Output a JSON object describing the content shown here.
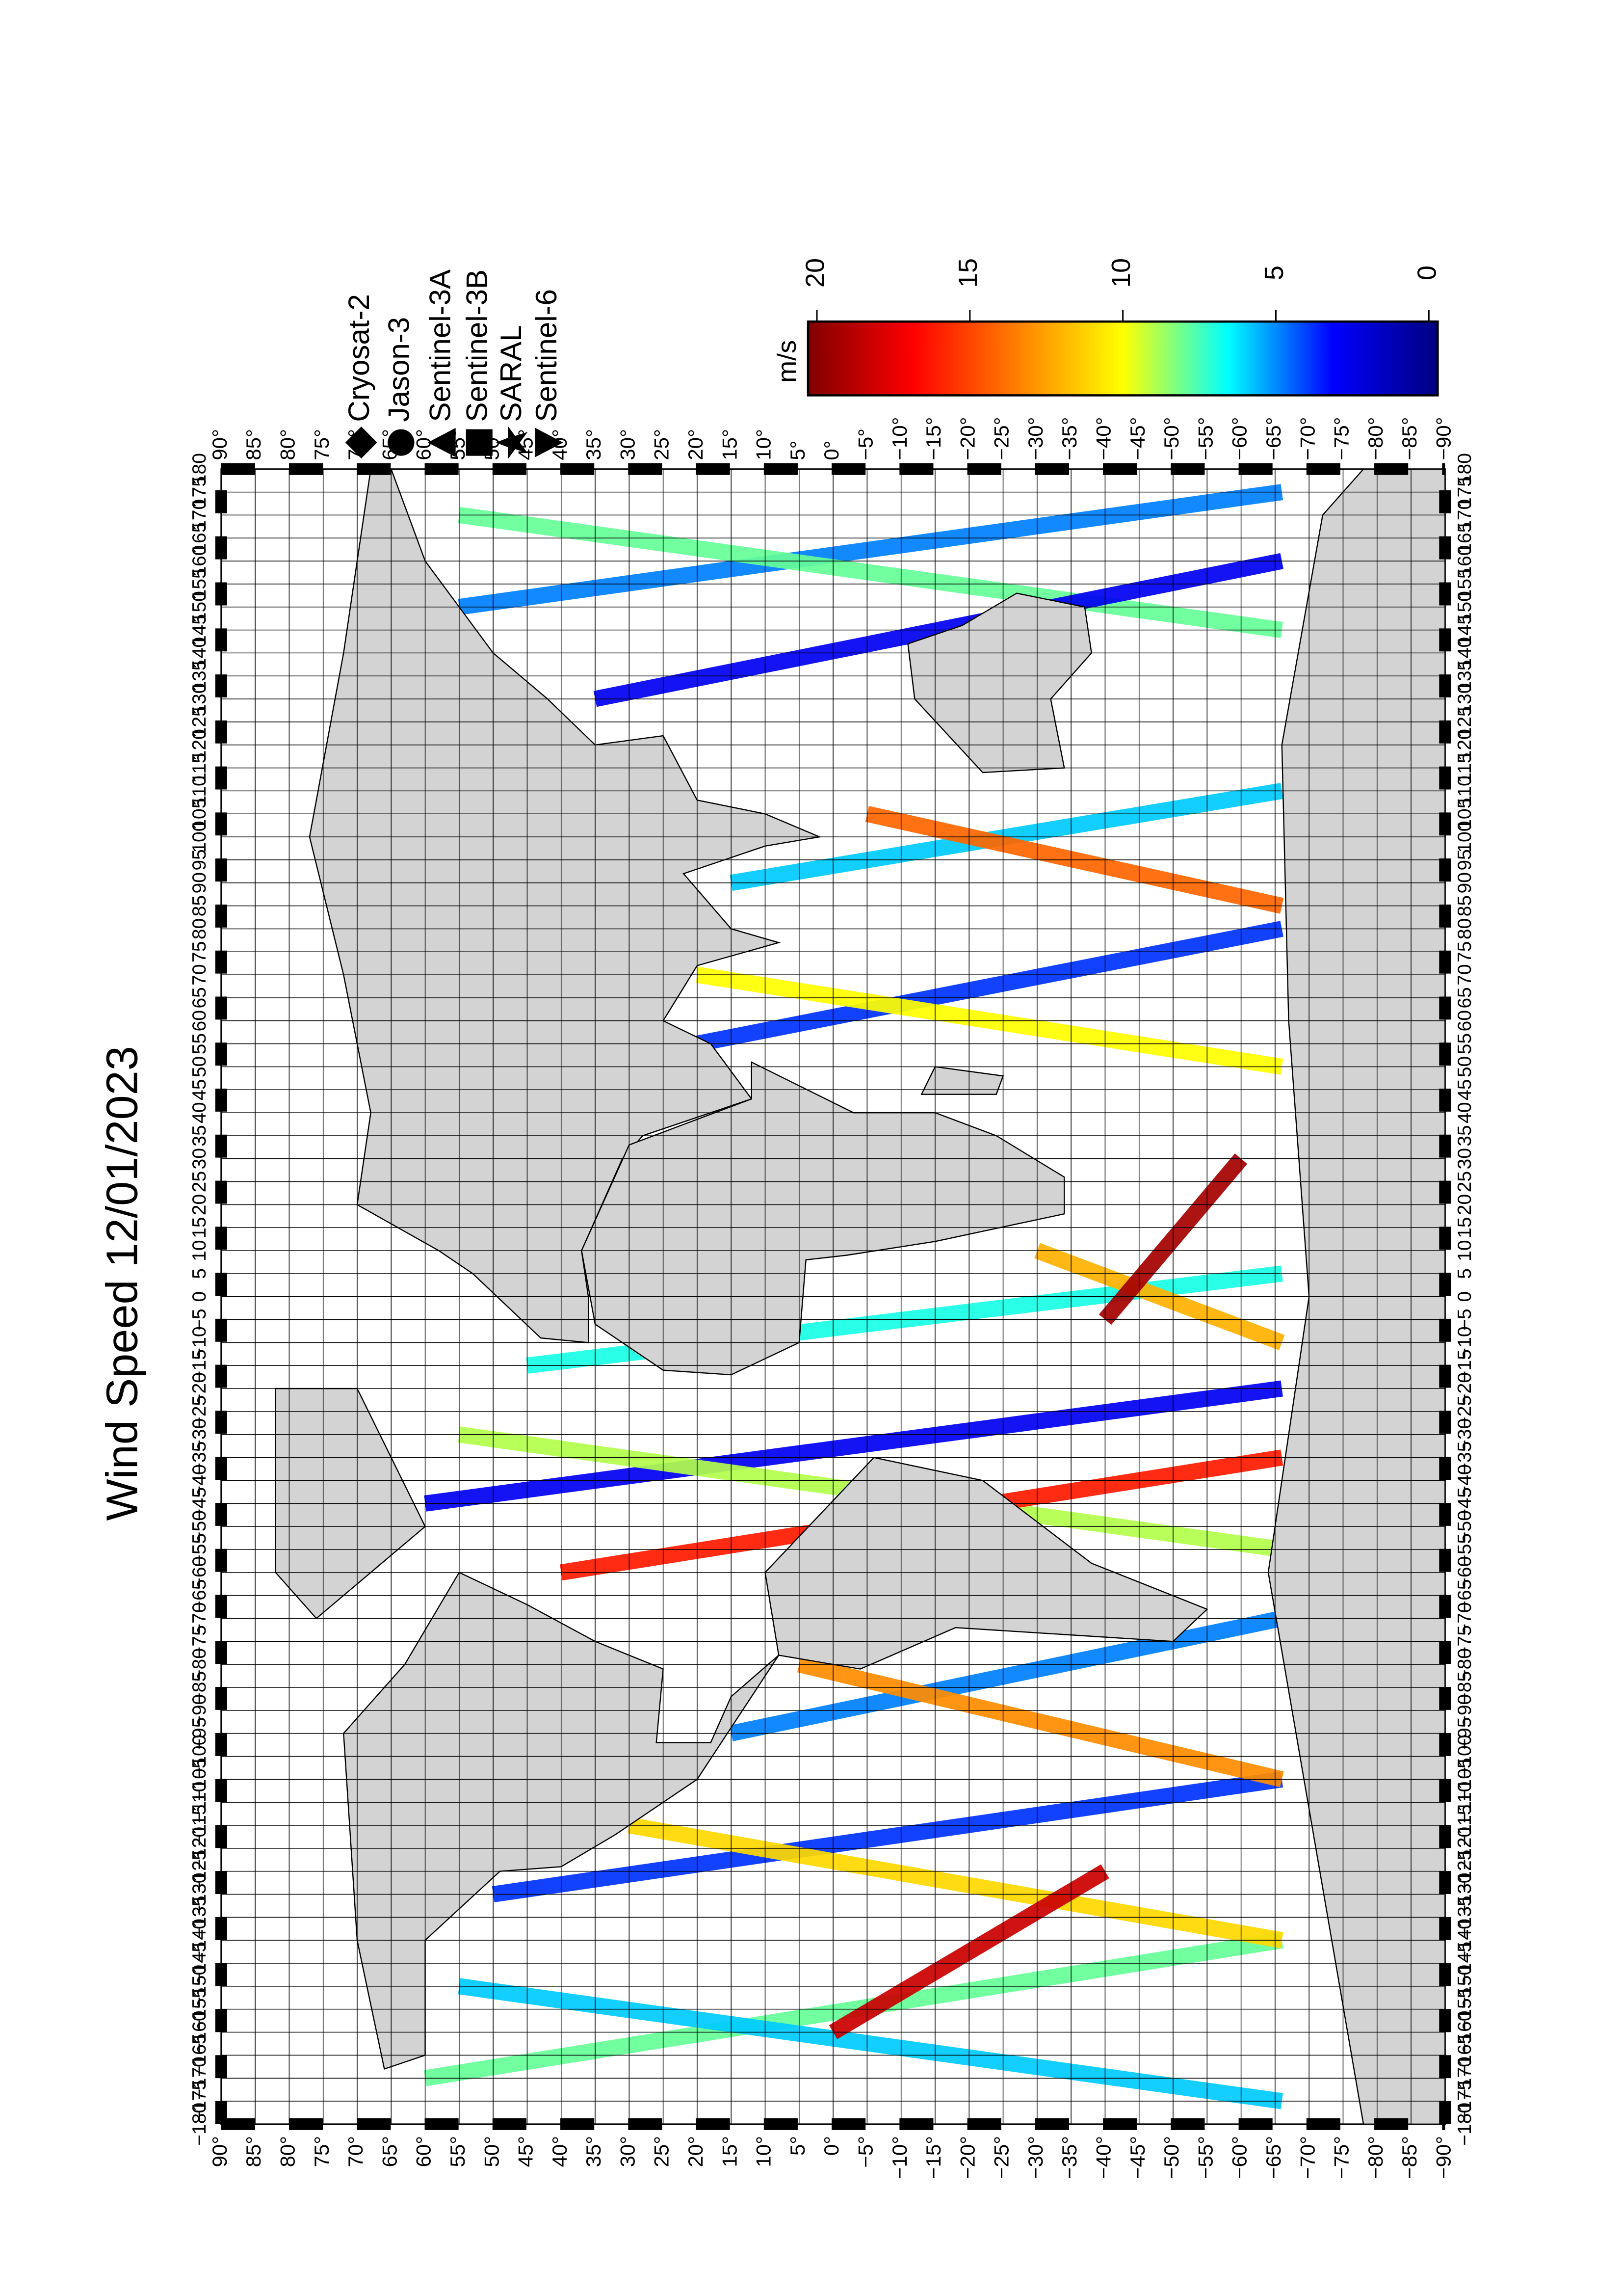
{
  "chart_data": {
    "type": "track-map",
    "title": "Wind Speed 12/01/2023",
    "xlim": [
      -180,
      180
    ],
    "ylim": [
      90,
      -90
    ],
    "xticks": [
      {
        "value": -180,
        "label": "−180"
      },
      {
        "value": -175,
        "label": "−175"
      },
      {
        "value": -170,
        "label": "−170"
      },
      {
        "value": -165,
        "label": "−165"
      },
      {
        "value": -160,
        "label": "−160"
      },
      {
        "value": -155,
        "label": "−155"
      },
      {
        "value": -150,
        "label": "−150"
      },
      {
        "value": -145,
        "label": "−145"
      },
      {
        "value": -140,
        "label": "−140"
      },
      {
        "value": -135,
        "label": "−135"
      },
      {
        "value": -130,
        "label": "−130"
      },
      {
        "value": -125,
        "label": "−125"
      },
      {
        "value": -120,
        "label": "−120"
      },
      {
        "value": -115,
        "label": "−115"
      },
      {
        "value": -110,
        "label": "−110"
      },
      {
        "value": -105,
        "label": "−105"
      },
      {
        "value": -100,
        "label": "−100"
      },
      {
        "value": -95,
        "label": "−95"
      },
      {
        "value": -90,
        "label": "−90"
      },
      {
        "value": -85,
        "label": "−85"
      },
      {
        "value": -80,
        "label": "−80"
      },
      {
        "value": -75,
        "label": "−75"
      },
      {
        "value": -70,
        "label": "−70"
      },
      {
        "value": -65,
        "label": "−65"
      },
      {
        "value": -60,
        "label": "−60"
      },
      {
        "value": -55,
        "label": "−55"
      },
      {
        "value": -50,
        "label": "−50"
      },
      {
        "value": -45,
        "label": "−45"
      },
      {
        "value": -40,
        "label": "−40"
      },
      {
        "value": -35,
        "label": "−35"
      },
      {
        "value": -30,
        "label": "−30"
      },
      {
        "value": -25,
        "label": "−25"
      },
      {
        "value": -20,
        "label": "−20"
      },
      {
        "value": -15,
        "label": "−15"
      },
      {
        "value": -10,
        "label": "−10"
      },
      {
        "value": -5,
        "label": "−5"
      },
      0,
      5,
      10,
      15,
      20,
      25,
      30,
      35,
      40,
      45,
      50,
      55,
      60,
      65,
      70,
      75,
      80,
      85,
      90,
      95,
      100,
      105,
      110,
      115,
      120,
      125,
      130,
      135,
      140,
      145,
      150,
      155,
      160,
      165,
      170,
      175,
      180
    ],
    "yticks": [
      {
        "value": 90,
        "label": "90°"
      },
      {
        "value": 85,
        "label": "85°"
      },
      {
        "value": 80,
        "label": "80°"
      },
      {
        "value": 75,
        "label": "75°"
      },
      {
        "value": 70,
        "label": "70°"
      },
      {
        "value": 65,
        "label": "65°"
      },
      {
        "value": 60,
        "label": "60°"
      },
      {
        "value": 55,
        "label": "55°"
      },
      {
        "value": 50,
        "label": "50°"
      },
      {
        "value": 45,
        "label": "45°"
      },
      {
        "value": 40,
        "label": "40°"
      },
      {
        "value": 35,
        "label": "35°"
      },
      {
        "value": 30,
        "label": "30°"
      },
      {
        "value": 25,
        "label": "25°"
      },
      {
        "value": 20,
        "label": "20°"
      },
      {
        "value": 15,
        "label": "15°"
      },
      {
        "value": 10,
        "label": "10°"
      },
      {
        "value": 5,
        "label": "5°"
      },
      {
        "value": 0,
        "label": "0°"
      },
      {
        "value": -5,
        "label": "−5°"
      },
      {
        "value": -10,
        "label": "−10°"
      },
      {
        "value": -15,
        "label": "−15°"
      },
      {
        "value": -20,
        "label": "−20°"
      },
      {
        "value": -25,
        "label": "−25°"
      },
      {
        "value": -30,
        "label": "−30°"
      },
      {
        "value": -35,
        "label": "−35°"
      },
      {
        "value": -40,
        "label": "−40°"
      },
      {
        "value": -45,
        "label": "−45°"
      },
      {
        "value": -50,
        "label": "−50°"
      },
      {
        "value": -55,
        "label": "−55°"
      },
      {
        "value": -60,
        "label": "−60°"
      },
      {
        "value": -65,
        "label": "−65°"
      },
      {
        "value": -70,
        "label": "−70°"
      },
      {
        "value": -75,
        "label": "−75°"
      },
      {
        "value": -80,
        "label": "−80°"
      },
      {
        "value": -85,
        "label": "−85°"
      },
      {
        "value": -90,
        "label": "−90°"
      }
    ],
    "grid": true,
    "legend": [
      {
        "name": "Cryosat-2",
        "marker": "diamond"
      },
      {
        "name": "Jason-3",
        "marker": "circle"
      },
      {
        "name": "Sentinel-3A",
        "marker": "triangle-up"
      },
      {
        "name": "Sentinel-3B",
        "marker": "square"
      },
      {
        "name": "SARAL",
        "marker": "star"
      },
      {
        "name": "Sentinel-6",
        "marker": "triangle-down"
      }
    ],
    "colorbar": {
      "label": "m/s",
      "range": [
        0,
        20
      ],
      "ticks": [
        0,
        5,
        10,
        15,
        20
      ],
      "colors": [
        "#000080",
        "#0000ff",
        "#00ffff",
        "#ffff00",
        "#ff8000",
        "#ff0000",
        "#800000"
      ]
    },
    "tracks": [
      {
        "lon": [
          -170,
          -140
        ],
        "lat": [
          60,
          -66
        ],
        "speed": 8
      },
      {
        "lon": [
          -150,
          -175
        ],
        "lat": [
          55,
          -66
        ],
        "speed": 6
      },
      {
        "lon": [
          -130,
          -105
        ],
        "lat": [
          50,
          -66
        ],
        "speed": 4
      },
      {
        "lon": [
          -115,
          -140
        ],
        "lat": [
          30,
          -66
        ],
        "speed": 11
      },
      {
        "lon": [
          -95,
          -70
        ],
        "lat": [
          15,
          -66
        ],
        "speed": 5
      },
      {
        "lon": [
          -80,
          -105
        ],
        "lat": [
          5,
          -66
        ],
        "speed": 13
      },
      {
        "lon": [
          -45,
          -20
        ],
        "lat": [
          60,
          -66
        ],
        "speed": 3
      },
      {
        "lon": [
          -30,
          -55
        ],
        "lat": [
          55,
          -66
        ],
        "speed": 9
      },
      {
        "lon": [
          -60,
          -35
        ],
        "lat": [
          40,
          -66
        ],
        "speed": 16
      },
      {
        "lon": [
          -15,
          5
        ],
        "lat": [
          45,
          -66
        ],
        "speed": 7
      },
      {
        "lon": [
          10,
          -10
        ],
        "lat": [
          -30,
          -66
        ],
        "speed": 12
      },
      {
        "lon": [
          55,
          80
        ],
        "lat": [
          20,
          -66
        ],
        "speed": 4
      },
      {
        "lon": [
          70,
          50
        ],
        "lat": [
          20,
          -66
        ],
        "speed": 10
      },
      {
        "lon": [
          90,
          110
        ],
        "lat": [
          15,
          -66
        ],
        "speed": 6
      },
      {
        "lon": [
          105,
          85
        ],
        "lat": [
          -5,
          -66
        ],
        "speed": 14
      },
      {
        "lon": [
          150,
          175
        ],
        "lat": [
          55,
          -66
        ],
        "speed": 5
      },
      {
        "lon": [
          170,
          145
        ],
        "lat": [
          55,
          -66
        ],
        "speed": 8
      },
      {
        "lon": [
          130,
          160
        ],
        "lat": [
          35,
          -66
        ],
        "speed": 3
      },
      {
        "lon": [
          -160,
          -125
        ],
        "lat": [
          0,
          -40
        ],
        "speed": 18
      },
      {
        "lon": [
          -5,
          30
        ],
        "lat": [
          -40,
          -60
        ],
        "speed": 19
      }
    ]
  }
}
